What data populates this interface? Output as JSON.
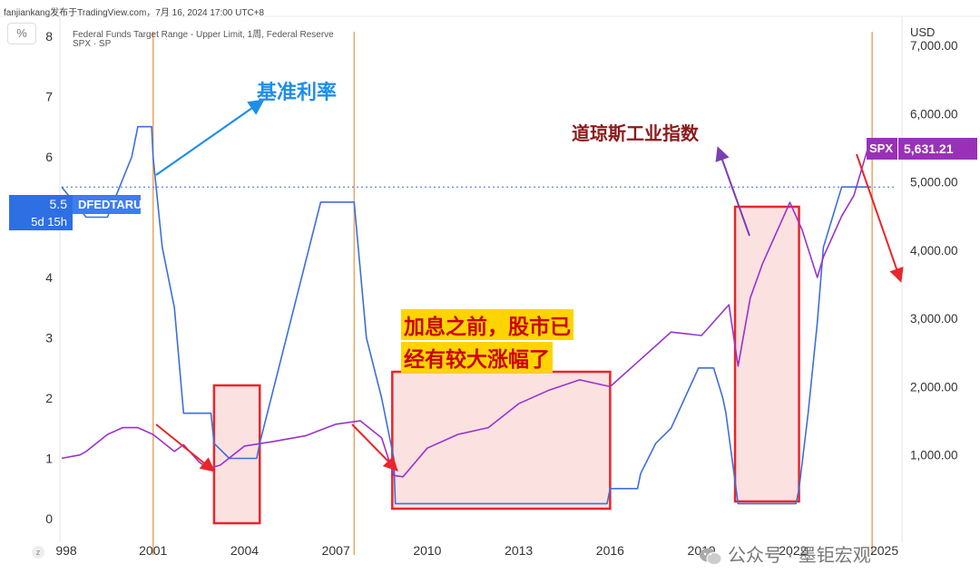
{
  "header": {
    "source_line": "fanjiankang发布于TradingView.com，7月 16, 2024 17:00 UTC+8",
    "series_line_1": "Federal Funds Target Range - Upper Limit, 1周, Federal Reserve",
    "series_line_2": "SPX · SP",
    "left_unit": "%",
    "right_unit": "USD"
  },
  "tags": {
    "rate_value": "5.5",
    "rate_symbol": "DFEDTARU",
    "rate_countdown": "5d 15h",
    "spx_symbol": "SPX",
    "spx_value": "5,631.21"
  },
  "annotations": {
    "rate_label": "基准利率",
    "index_label": "道琼斯工业指数",
    "note_line1": "加息之前，股市已",
    "note_line2": "经有较大涨幅了"
  },
  "watermark": "公众号 · 墨钜宏观",
  "colors": {
    "rate": "#3d6fd9",
    "spx": "#9932cc",
    "box": "#e8262b",
    "box_fill": "#fbd9da",
    "vline": "#e8a765",
    "rate_tag": "#2f6fe4",
    "spx_tag": "#9b30b8"
  },
  "chart_data": {
    "type": "line",
    "x_ticks": [
      "998",
      "2001",
      "2004",
      "2007",
      "2010",
      "2013",
      "2016",
      "2019",
      "2022",
      "2025"
    ],
    "y_left_ticks": [
      "0",
      "1",
      "2",
      "3",
      "4",
      "5",
      "6",
      "7",
      "8"
    ],
    "y_right_ticks": [
      "1,000.00",
      "2,000.00",
      "3,000.00",
      "4,000.00",
      "5,000.00",
      "6,000.00",
      "7,000.00"
    ],
    "y_left_range": [
      -0.3,
      8.3
    ],
    "y_right_range": [
      -200,
      7400
    ],
    "series": [
      {
        "name": "DFEDTARU",
        "axis": "left",
        "points": [
          [
            1998.0,
            5.5
          ],
          [
            1998.8,
            5.0
          ],
          [
            1999.5,
            5.0
          ],
          [
            1999.9,
            5.5
          ],
          [
            2000.3,
            6.0
          ],
          [
            2000.5,
            6.5
          ],
          [
            2000.95,
            6.5
          ],
          [
            2001.0,
            6.0
          ],
          [
            2001.3,
            4.5
          ],
          [
            2001.7,
            3.5
          ],
          [
            2002.0,
            1.75
          ],
          [
            2002.9,
            1.75
          ],
          [
            2003.0,
            1.25
          ],
          [
            2003.5,
            1.0
          ],
          [
            2004.4,
            1.0
          ],
          [
            2004.5,
            1.25
          ],
          [
            2005.0,
            2.25
          ],
          [
            2006.0,
            4.25
          ],
          [
            2006.5,
            5.25
          ],
          [
            2007.6,
            5.25
          ],
          [
            2008.0,
            3.0
          ],
          [
            2008.5,
            2.0
          ],
          [
            2008.9,
            1.0
          ],
          [
            2008.95,
            0.25
          ],
          [
            2015.9,
            0.25
          ],
          [
            2016.0,
            0.5
          ],
          [
            2016.9,
            0.5
          ],
          [
            2017.0,
            0.75
          ],
          [
            2017.5,
            1.25
          ],
          [
            2018.0,
            1.5
          ],
          [
            2018.9,
            2.5
          ],
          [
            2019.4,
            2.5
          ],
          [
            2019.7,
            2.0
          ],
          [
            2019.8,
            1.75
          ],
          [
            2020.2,
            0.25
          ],
          [
            2022.1,
            0.25
          ],
          [
            2022.2,
            0.5
          ],
          [
            2022.5,
            1.75
          ],
          [
            2022.8,
            3.25
          ],
          [
            2023.0,
            4.5
          ],
          [
            2023.3,
            5.0
          ],
          [
            2023.6,
            5.5
          ],
          [
            2024.55,
            5.5
          ]
        ]
      },
      {
        "name": "SPX",
        "axis": "right",
        "points": [
          [
            1998.0,
            950
          ],
          [
            1998.6,
            1000
          ],
          [
            1998.8,
            1050
          ],
          [
            1999.5,
            1300
          ],
          [
            2000.0,
            1400
          ],
          [
            2000.5,
            1400
          ],
          [
            2001.0,
            1300
          ],
          [
            2001.7,
            1050
          ],
          [
            2002.0,
            1150
          ],
          [
            2002.5,
            900
          ],
          [
            2002.8,
            800
          ],
          [
            2003.2,
            850
          ],
          [
            2004.0,
            1130
          ],
          [
            2005.0,
            1200
          ],
          [
            2006.0,
            1280
          ],
          [
            2007.0,
            1450
          ],
          [
            2007.8,
            1500
          ],
          [
            2008.5,
            1250
          ],
          [
            2008.9,
            700
          ],
          [
            2009.2,
            680
          ],
          [
            2010.0,
            1100
          ],
          [
            2011.0,
            1300
          ],
          [
            2012.0,
            1400
          ],
          [
            2013.0,
            1750
          ],
          [
            2014.0,
            1950
          ],
          [
            2015.0,
            2100
          ],
          [
            2016.0,
            2000
          ],
          [
            2017.0,
            2400
          ],
          [
            2018.0,
            2800
          ],
          [
            2019.0,
            2750
          ],
          [
            2019.9,
            3200
          ],
          [
            2020.2,
            2300
          ],
          [
            2020.6,
            3300
          ],
          [
            2021.0,
            3800
          ],
          [
            2021.9,
            4700
          ],
          [
            2022.3,
            4300
          ],
          [
            2022.8,
            3600
          ],
          [
            2023.0,
            3900
          ],
          [
            2023.6,
            4500
          ],
          [
            2024.0,
            4800
          ],
          [
            2024.55,
            5631
          ]
        ]
      }
    ],
    "last_rate": 5.5,
    "last_spx": 5631.21,
    "vertical_markers": [
      2001.0,
      2007.6,
      2024.6
    ],
    "highlight_ranges": [
      [
        2003.0,
        2004.5
      ],
      [
        2008.85,
        2016.0
      ],
      [
        2020.1,
        2022.2
      ]
    ]
  }
}
